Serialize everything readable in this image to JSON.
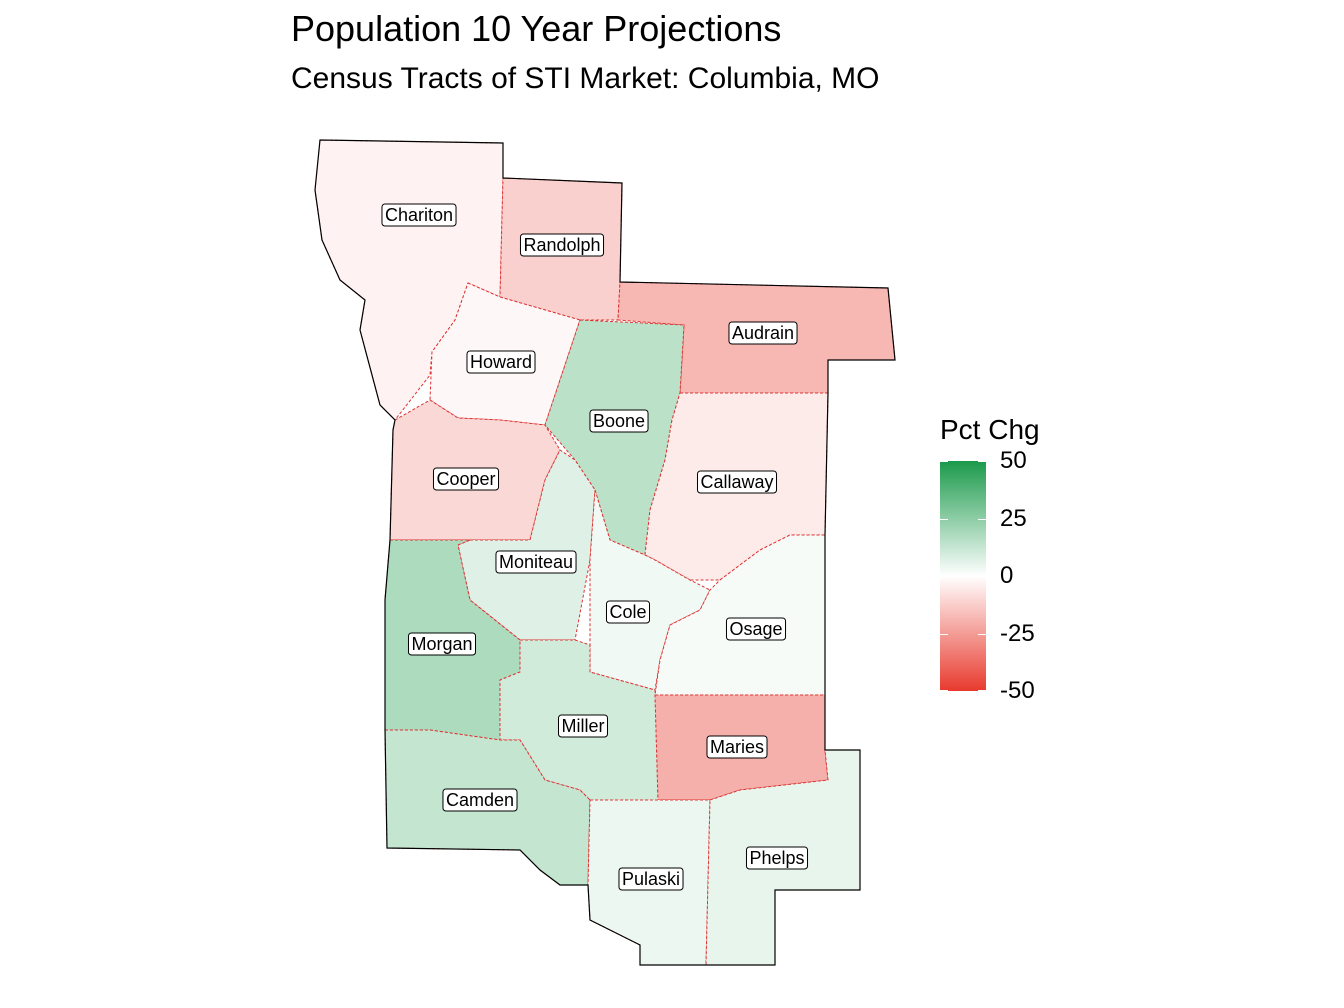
{
  "title": "Population 10 Year Projections",
  "subtitle": "Census Tracts of STI Market: Columbia, MO",
  "legend": {
    "title": "Pct Chg",
    "ticks": [
      "50",
      "25",
      "0",
      "-25",
      "-50"
    ],
    "tick_values": [
      50,
      25,
      0,
      -25,
      -50
    ],
    "range": [
      -50,
      50
    ],
    "color_high": "#1b9a4b",
    "color_mid": "#ffffff",
    "color_low": "#e83a2e"
  },
  "counties": [
    {
      "name": "Chariton",
      "pct_chg": -3
    },
    {
      "name": "Randolph",
      "pct_chg": -12
    },
    {
      "name": "Audrain",
      "pct_chg": -18
    },
    {
      "name": "Howard",
      "pct_chg": -2
    },
    {
      "name": "Boone",
      "pct_chg": 15
    },
    {
      "name": "Cooper",
      "pct_chg": -10
    },
    {
      "name": "Callaway",
      "pct_chg": -5
    },
    {
      "name": "Moniteau",
      "pct_chg": 7
    },
    {
      "name": "Cole",
      "pct_chg": 3
    },
    {
      "name": "Osage",
      "pct_chg": 2
    },
    {
      "name": "Morgan",
      "pct_chg": 18
    },
    {
      "name": "Miller",
      "pct_chg": 10
    },
    {
      "name": "Maries",
      "pct_chg": -20
    },
    {
      "name": "Camden",
      "pct_chg": 13
    },
    {
      "name": "Pulaski",
      "pct_chg": 4
    },
    {
      "name": "Phelps",
      "pct_chg": 5
    }
  ]
}
